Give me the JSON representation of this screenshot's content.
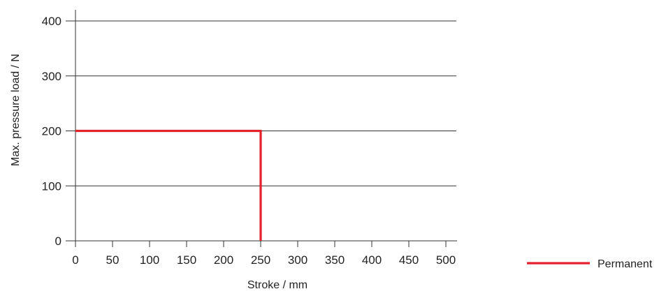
{
  "chart_data": {
    "type": "line",
    "title": "",
    "xlabel": "Stroke / mm",
    "ylabel": "Max. pressure load / N",
    "xlim": [
      0,
      500
    ],
    "ylim": [
      0,
      400
    ],
    "x_ticks": [
      0,
      50,
      100,
      150,
      200,
      250,
      300,
      350,
      400,
      450,
      500
    ],
    "y_ticks": [
      0,
      100,
      200,
      300,
      400
    ],
    "x_tick_labels": [
      "0",
      "50",
      "100",
      "150",
      "200",
      "250",
      "300",
      "350",
      "400",
      "450",
      "500"
    ],
    "y_tick_labels": [
      "0",
      "100",
      "200",
      "300",
      "400"
    ],
    "grid": {
      "horizontal": true,
      "vertical": false
    },
    "legend_position": "bottom-right",
    "series": [
      {
        "name": "Permanent",
        "color": "#e3232c",
        "x": [
          0,
          250,
          250
        ],
        "y": [
          200,
          200,
          0
        ]
      }
    ]
  }
}
